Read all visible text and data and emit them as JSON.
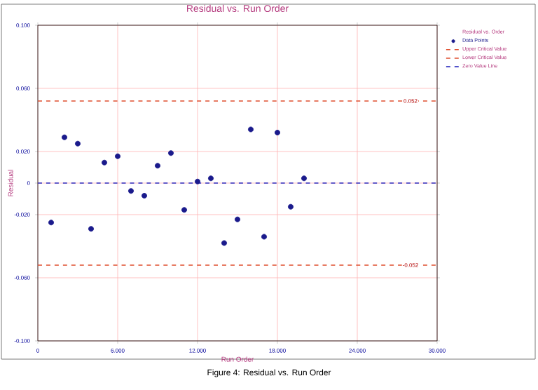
{
  "chart_data": {
    "type": "scatter",
    "title": "Residual vs. Run Order",
    "xlabel": "Run Order",
    "ylabel": "Residual",
    "legend_title": "Residual vs. Order",
    "x": [
      1,
      2,
      3,
      4,
      5,
      6,
      7,
      8,
      9,
      10,
      11,
      12,
      13,
      14,
      15,
      16,
      17,
      18,
      19,
      20
    ],
    "series": [
      {
        "name": "Data Points",
        "color": "#1a1a8c",
        "values": [
          -0.025,
          0.029,
          0.025,
          -0.029,
          0.013,
          0.017,
          -0.005,
          -0.008,
          0.011,
          0.019,
          -0.017,
          0.001,
          0.003,
          -0.038,
          -0.023,
          0.034,
          -0.034,
          0.032,
          -0.015,
          0.003
        ]
      }
    ],
    "marker": "circle",
    "xlim": [
      0,
      30
    ],
    "ylim": [
      -0.1,
      0.1
    ],
    "xticks": [
      0,
      {
        "value": 6,
        "label": "6.000"
      },
      {
        "value": 12,
        "label": "12.000"
      },
      {
        "value": 18,
        "label": "18.000"
      },
      {
        "value": 24,
        "label": "24.000"
      },
      {
        "value": 30,
        "label": "30.000"
      }
    ],
    "yticks": [
      {
        "value": -0.1,
        "label": "-0.100"
      },
      {
        "value": -0.06,
        "label": "-0.060"
      },
      {
        "value": -0.02,
        "label": "-0.020"
      },
      0,
      {
        "value": 0.02,
        "label": "0.020"
      },
      {
        "value": 0.06,
        "label": "0.060"
      },
      {
        "value": 0.1,
        "label": "0.100"
      }
    ],
    "ref_lines": [
      {
        "axis": "y",
        "value": 0.052,
        "label": "Upper Critical Value",
        "color": "#e05030",
        "line_style": "dashed"
      },
      {
        "axis": "y",
        "value": -0.052,
        "label": "Lower Critical Value",
        "color": "#e05030",
        "line_style": "dashed"
      },
      {
        "axis": "y",
        "value": 0,
        "label": "Zero Value Line",
        "color": "#3030c0",
        "line_style": "dashed"
      }
    ],
    "annotations": [
      {
        "text": "0.052",
        "x": 28,
        "y": 0.052
      },
      {
        "text": "-0.052",
        "x": 28,
        "y": -0.052
      },
      "Figure 4: Residual vs. Run Order"
    ],
    "grid": true,
    "legend": "right"
  }
}
